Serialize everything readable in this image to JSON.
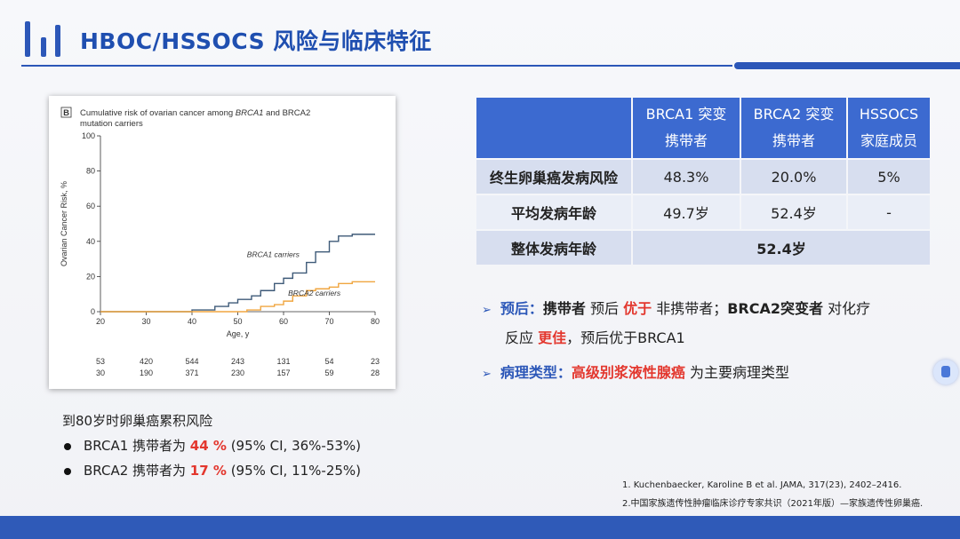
{
  "slide": {
    "title": "HBOC/HSSOCS 风险与临床特征",
    "accent_color": "#2c57b8"
  },
  "chart_card": {
    "panel_letter": "B",
    "caption_line1_prefix": "Cumulative risk of ovarian cancer among ",
    "caption_line1_em": "BRCA1",
    "caption_line1_suffix": " and BRCA2",
    "caption_line2": "mutation carriers",
    "number_at_risk": {
      "brca1": [
        "53",
        "420",
        "544",
        "243",
        "131",
        "54",
        "23"
      ],
      "brca2": [
        "30",
        "190",
        "371",
        "230",
        "157",
        "59",
        "28"
      ]
    }
  },
  "chart_data": {
    "type": "line",
    "title": "Cumulative risk of ovarian cancer among BRCA1 and BRCA2 mutation carriers",
    "xlabel": "Age, y",
    "ylabel": "Ovarian Cancer Risk, %",
    "xlim": [
      20,
      80
    ],
    "ylim": [
      0,
      100
    ],
    "xticks": [
      20,
      30,
      40,
      50,
      60,
      70,
      80
    ],
    "yticks": [
      0,
      20,
      40,
      60,
      80,
      100
    ],
    "grid": false,
    "series": [
      {
        "name": "BRCA1 carriers",
        "color": "#3e5a78",
        "x": [
          20,
          35,
          40,
          45,
          48,
          50,
          53,
          55,
          58,
          60,
          62,
          65,
          67,
          70,
          72,
          75,
          80
        ],
        "y": [
          0,
          0,
          1,
          3,
          5,
          7,
          9,
          12,
          16,
          19,
          22,
          28,
          34,
          40,
          43,
          44,
          44
        ]
      },
      {
        "name": "BRCA2 carriers",
        "color": "#f0a640",
        "x": [
          20,
          50,
          52,
          55,
          58,
          60,
          62,
          65,
          67,
          70,
          72,
          75,
          80
        ],
        "y": [
          0,
          0,
          1,
          3,
          4,
          6,
          9,
          12,
          13,
          14,
          16,
          17,
          17
        ]
      }
    ]
  },
  "risk_summary": {
    "heading": "到80岁时卵巢癌累积风险",
    "items": [
      {
        "prefix": "BRCA1 携带者为 ",
        "value": "44 %",
        "suffix": " (95% CI, 36%-53%)"
      },
      {
        "prefix": "BRCA2 携带者为 ",
        "value": "17 %",
        "suffix": " (95% CI, 11%-25%)"
      }
    ]
  },
  "table": {
    "header": {
      "col1_line1": "BRCA1 突变",
      "col1_line2": "携带者",
      "col2_line1": "BRCA2 突变",
      "col2_line2": "携带者",
      "col3_line1": "HSSOCS",
      "col3_line2": "家庭成员"
    },
    "rows": [
      {
        "label": "终生卵巢癌发病风险",
        "c1": "48.3%",
        "c2": "20.0%",
        "c3": "5%"
      },
      {
        "label": "平均发病年龄",
        "c1": "49.7岁",
        "c2": "52.4岁",
        "c3": "-"
      },
      {
        "label": "整体发病年龄",
        "merged": "52.4岁"
      }
    ]
  },
  "bullets": {
    "prognosis": {
      "label": "预后：",
      "t1": "携带者",
      "t2": " 预后 ",
      "t3": "优于",
      "t4": " 非携带者；",
      "t5": "BRCA2突变者",
      "t6": " 对化疗",
      "line2_a": "反应 ",
      "line2_b": "更佳",
      "line2_c": "，预后优于BRCA1"
    },
    "pathology": {
      "label": "病理类型：",
      "highlight": "高级别浆液性腺癌",
      "rest": " 为主要病理类型"
    }
  },
  "references": [
    "1. Kuchenbaecker, Karoline B et al. JAMA, 317(23), 2402–2416.",
    "2.中国家族遗传性肿瘤临床诊疗专家共识（2021年版）—家族遗传性卵巢癌."
  ]
}
